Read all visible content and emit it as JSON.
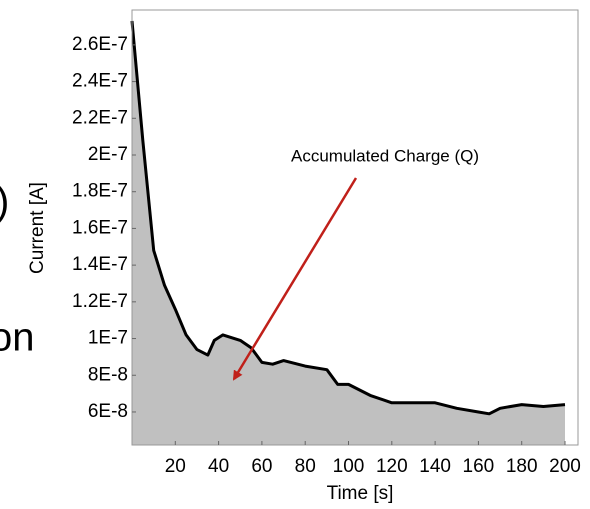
{
  "chart_data": {
    "type": "area",
    "x_label": "Time [s]",
    "y_label": "Current [A]",
    "annotation": "Accumulated Charge (Q)",
    "fragments": [
      ")",
      "on"
    ],
    "x": [
      0,
      5,
      10,
      15,
      20,
      25,
      30,
      35,
      38,
      42,
      50,
      55,
      60,
      65,
      70,
      80,
      90,
      95,
      100,
      110,
      120,
      130,
      140,
      150,
      160,
      165,
      170,
      180,
      190,
      200
    ],
    "values": [
      2.73e-07,
      2.08e-07,
      1.48e-07,
      1.29e-07,
      1.16e-07,
      1.02e-07,
      9.4e-08,
      9.1e-08,
      9.9e-08,
      1.02e-07,
      9.9e-08,
      9.5e-08,
      8.7e-08,
      8.6e-08,
      8.8e-08,
      8.5e-08,
      8.3e-08,
      7.5e-08,
      7.5e-08,
      6.9e-08,
      6.5e-08,
      6.5e-08,
      6.5e-08,
      6.2e-08,
      6e-08,
      5.9e-08,
      6.2e-08,
      6.4e-08,
      6.3e-08,
      6.4e-08
    ],
    "color": "#c0c0c0",
    "line_color": "#000000",
    "xlim": [
      0,
      206
    ],
    "ylim": [
      4.2e-08,
      2.79e-07
    ],
    "xticks": [
      20,
      40,
      60,
      80,
      100,
      120,
      140,
      160,
      180,
      200
    ],
    "yticks": [
      {
        "value": 6e-08,
        "label": "6E-8"
      },
      {
        "value": 8e-08,
        "label": "8E-8"
      },
      {
        "value": 1e-07,
        "label": "1E-7"
      },
      {
        "value": 1.2e-07,
        "label": "1.2E-7"
      },
      {
        "value": 1.4e-07,
        "label": "1.4E-7"
      },
      {
        "value": 1.6e-07,
        "label": "1.6E-7"
      },
      {
        "value": 1.8e-07,
        "label": "1.8E-7"
      },
      {
        "value": 2e-07,
        "label": "2E-7"
      },
      {
        "value": 2.2e-07,
        "label": "2.2E-7"
      },
      {
        "value": 2.4e-07,
        "label": "2.4E-7"
      },
      {
        "value": 2.6e-07,
        "label": "2.6E-7"
      }
    ]
  }
}
